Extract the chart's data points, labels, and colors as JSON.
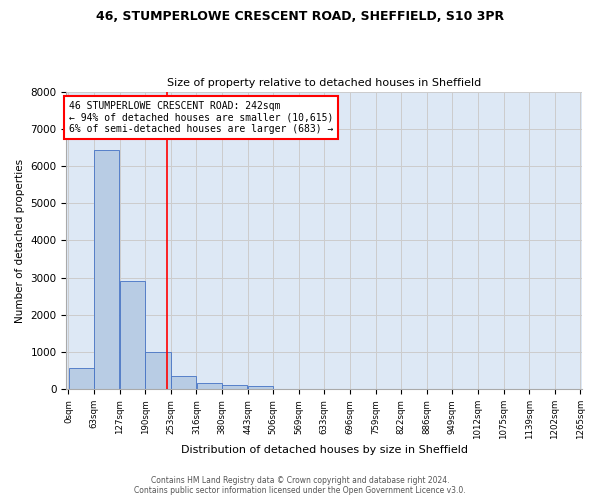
{
  "title_line1": "46, STUMPERLOWE CRESCENT ROAD, SHEFFIELD, S10 3PR",
  "title_line2": "Size of property relative to detached houses in Sheffield",
  "xlabel": "Distribution of detached houses by size in Sheffield",
  "ylabel": "Number of detached properties",
  "bin_labels": [
    "0sqm",
    "63sqm",
    "127sqm",
    "190sqm",
    "253sqm",
    "316sqm",
    "380sqm",
    "443sqm",
    "506sqm",
    "569sqm",
    "633sqm",
    "696sqm",
    "759sqm",
    "822sqm",
    "886sqm",
    "949sqm",
    "1012sqm",
    "1075sqm",
    "1139sqm",
    "1202sqm",
    "1265sqm"
  ],
  "bar_values": [
    580,
    6430,
    2920,
    990,
    360,
    160,
    105,
    80,
    0,
    0,
    0,
    0,
    0,
    0,
    0,
    0,
    0,
    0,
    0,
    0
  ],
  "bar_color": "#b8cce4",
  "bar_edge_color": "#4472c4",
  "annotation_text": "46 STUMPERLOWE CRESCENT ROAD: 242sqm\n← 94% of detached houses are smaller (10,615)\n6% of semi-detached houses are larger (683) →",
  "annotation_box_color": "white",
  "annotation_box_edge_color": "red",
  "vline_x": 242,
  "vline_color": "red",
  "bin_width": 63,
  "ylim": [
    0,
    8000
  ],
  "yticks": [
    0,
    1000,
    2000,
    3000,
    4000,
    5000,
    6000,
    7000,
    8000
  ],
  "grid_color": "#cccccc",
  "background_color": "#dde8f5",
  "footer_line1": "Contains HM Land Registry data © Crown copyright and database right 2024.",
  "footer_line2": "Contains public sector information licensed under the Open Government Licence v3.0."
}
